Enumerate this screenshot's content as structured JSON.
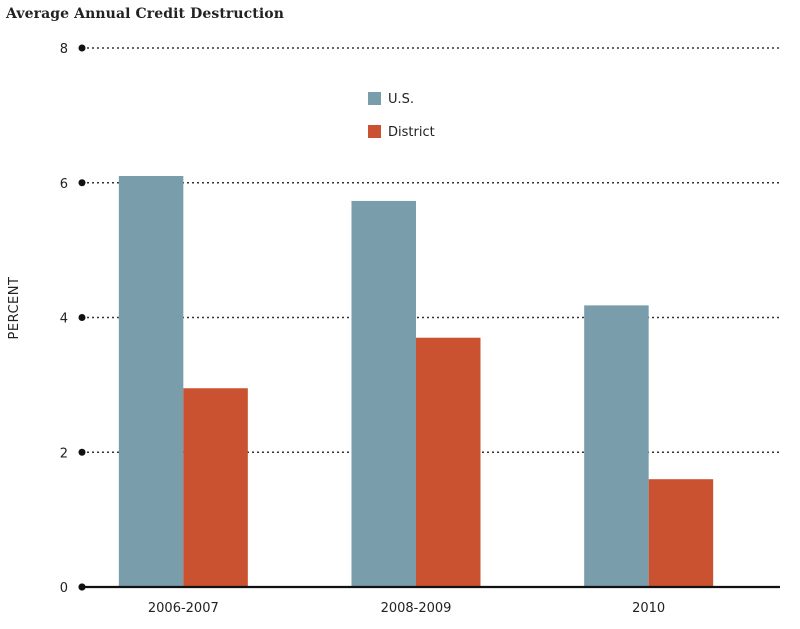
{
  "chart_data": {
    "type": "bar",
    "title": "Average Annual Credit Destruction",
    "xlabel": "",
    "ylabel": "PERCENT",
    "categories": [
      "2006-2007",
      "2008-2009",
      "2010"
    ],
    "series": [
      {
        "name": "U.S.",
        "values": [
          6.1,
          5.73,
          4.18
        ],
        "color": "#7a9dab"
      },
      {
        "name": "District",
        "values": [
          2.95,
          3.7,
          1.6
        ],
        "color": "#cb5230"
      }
    ],
    "ylim": [
      0,
      8
    ],
    "yticks": [
      0,
      2,
      4,
      6,
      8
    ],
    "grid": true,
    "legend_position": "top-center"
  }
}
